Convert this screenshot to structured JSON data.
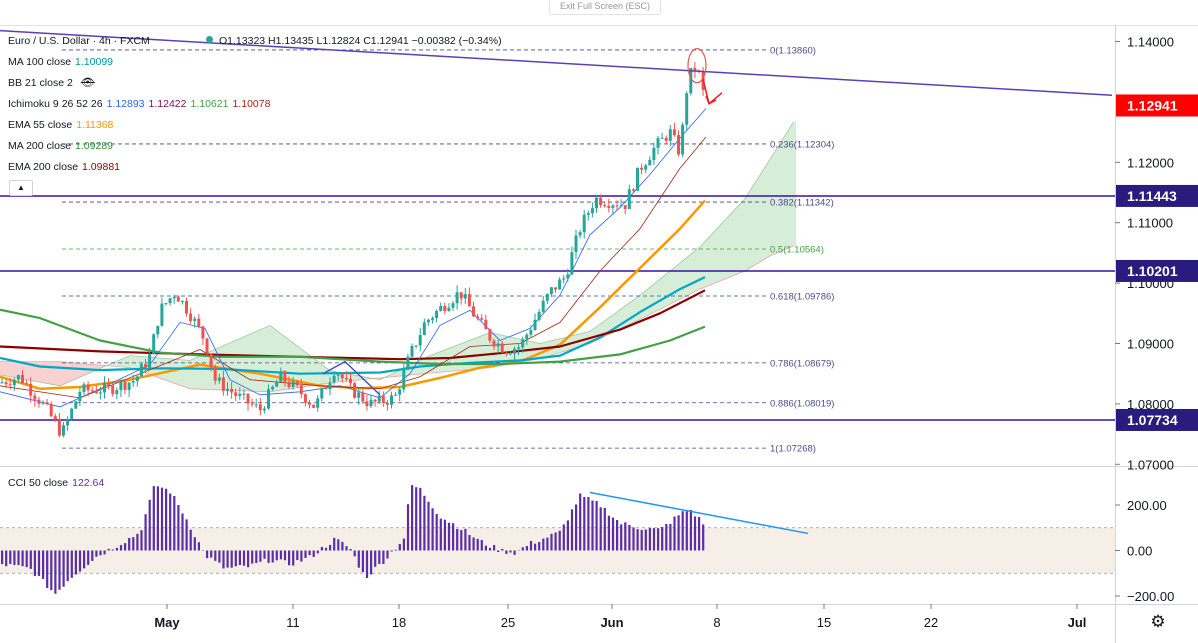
{
  "header": {
    "exit_fullscreen": "Exit Full Screen (ESC)",
    "symbol": "Euro / U.S. Dollar · 4h · FXCM",
    "ohlc": "O1.13323 H1.13435 L1.12824 C1.12941 −0.00382 (−0.34%)"
  },
  "legend": [
    {
      "name": "MA 100 close",
      "values": [
        "1.10099"
      ],
      "colors": [
        "#0097a7"
      ]
    },
    {
      "name": "BB 21 close 2",
      "values": [],
      "colors": [],
      "icon": "eye-slash-icon"
    },
    {
      "name": "Ichimoku 9 26 52 26",
      "values": [
        "1.12893",
        "1.12422",
        "1.10621",
        "1.10078"
      ],
      "colors": [
        "#2962ff",
        "#880e4f",
        "#43a047",
        "#a52714"
      ]
    },
    {
      "name": "EMA 55 close",
      "values": [
        "1.11368"
      ],
      "colors": [
        "#ff9800"
      ]
    },
    {
      "name": "MA 200 close",
      "values": [
        "1.09289"
      ],
      "colors": [
        "#388e3c"
      ]
    },
    {
      "name": "EMA 200 close",
      "values": [
        "1.09881"
      ],
      "colors": [
        "#8b0000"
      ]
    }
  ],
  "cci_legend": {
    "name": "CCI 50 close",
    "value": "122.64"
  },
  "colors": {
    "up": "#26a69a",
    "down": "#ef5350",
    "horizontal_line": "#3b0fa8",
    "trendline": "#5b3fb8",
    "fib_line": "#3b4a8c",
    "fib_0.5": "#43a047",
    "cci_bar": "#5b2ea6",
    "cci_trend": "#2196f3",
    "price_label": "#ff0000",
    "level_label": "#2a1b7e"
  },
  "chart_data": [
    {
      "type": "candlestick",
      "title": "",
      "symbol": "EURUSD",
      "timeframe": "4h",
      "x_tick_labels": [
        "May",
        "11",
        "18",
        "25",
        "Jun",
        "8",
        "15",
        "22",
        "Jul"
      ],
      "y_tick_labels": [
        "1.14000",
        "1.12000",
        "1.11000",
        "1.10000",
        "1.09000",
        "1.08000",
        "1.07000"
      ],
      "ylim": [
        1.0695,
        1.1408
      ],
      "grid": false,
      "last_price": "1.12941",
      "horizontal_levels": [
        "1.11443",
        "1.10201",
        "1.07734"
      ],
      "fibonacci": [
        {
          "ratio": "0",
          "price": "1.13860",
          "label": "0(1.13860)"
        },
        {
          "ratio": "0.236",
          "price": "1.12304",
          "label": "0.236(1.12304)"
        },
        {
          "ratio": "0.382",
          "price": "1.11342",
          "label": "0.382(1.11342)"
        },
        {
          "ratio": "0.5",
          "price": "1.10564",
          "label": "0.5(1.10564)"
        },
        {
          "ratio": "0.618",
          "price": "1.09786",
          "label": "0.618(1.09786)"
        },
        {
          "ratio": "0.786",
          "price": "1.08679",
          "label": "0.786(1.08679)"
        },
        {
          "ratio": "0.886",
          "price": "1.08019",
          "label": "0.886(1.08019)"
        },
        {
          "ratio": "1",
          "price": "1.07268",
          "label": "1(1.07268)"
        }
      ],
      "trendline": [
        [
          0,
          1.1418
        ],
        [
          1112,
          1.1311
        ]
      ],
      "series": [
        {
          "name": "EMA 55 close",
          "color": "#ff9800",
          "points": [
            [
              0,
              1.0845
            ],
            [
              40,
              1.0825
            ],
            [
              80,
              1.0828
            ],
            [
              130,
              1.084
            ],
            [
              200,
              1.0865
            ],
            [
              260,
              1.085
            ],
            [
              320,
              1.083
            ],
            [
              360,
              1.0826
            ],
            [
              400,
              1.0828
            ],
            [
              440,
              1.0843
            ],
            [
              480,
              1.086
            ],
            [
              520,
              1.087
            ],
            [
              560,
              1.0898
            ],
            [
              600,
              1.096
            ],
            [
              640,
              1.1025
            ],
            [
              680,
              1.109
            ],
            [
              705,
              1.1137
            ]
          ]
        },
        {
          "name": "MA 100 close",
          "color": "#00a7c4",
          "points": [
            [
              0,
              1.0876
            ],
            [
              40,
              1.0862
            ],
            [
              100,
              1.0856
            ],
            [
              160,
              1.0859
            ],
            [
              220,
              1.0858
            ],
            [
              300,
              1.085
            ],
            [
              380,
              1.0852
            ],
            [
              420,
              1.0862
            ],
            [
              470,
              1.0868
            ],
            [
              520,
              1.0872
            ],
            [
              560,
              1.088
            ],
            [
              600,
              1.091
            ],
            [
              640,
              1.0952
            ],
            [
              680,
              1.099
            ],
            [
              705,
              1.101
            ]
          ]
        },
        {
          "name": "EMA 200 close",
          "color": "#8b0000",
          "points": [
            [
              0,
              1.0895
            ],
            [
              100,
              1.0887
            ],
            [
              200,
              1.0882
            ],
            [
              300,
              1.0878
            ],
            [
              400,
              1.0874
            ],
            [
              450,
              1.0876
            ],
            [
              500,
              1.0884
            ],
            [
              560,
              1.0895
            ],
            [
              620,
              1.0923
            ],
            [
              660,
              1.095
            ],
            [
              705,
              1.0988
            ]
          ]
        },
        {
          "name": "MA 200 close",
          "color": "#43a047",
          "points": [
            [
              0,
              1.0956
            ],
            [
              40,
              1.0942
            ],
            [
              100,
              1.0905
            ],
            [
              160,
              1.0885
            ],
            [
              220,
              1.0878
            ],
            [
              300,
              1.0878
            ],
            [
              380,
              1.087
            ],
            [
              440,
              1.0866
            ],
            [
              500,
              1.0866
            ],
            [
              560,
              1.087
            ],
            [
              620,
              1.0882
            ],
            [
              670,
              1.0905
            ],
            [
              705,
              1.0928
            ]
          ]
        }
      ],
      "cloud": {
        "span_a": [
          [
            0,
            1.0848
          ],
          [
            60,
            1.083
          ],
          [
            130,
            1.088
          ],
          [
            190,
            1.0872
          ],
          [
            270,
            1.093
          ],
          [
            330,
            1.0855
          ],
          [
            380,
            1.084
          ],
          [
            430,
            1.088
          ],
          [
            490,
            1.0918
          ],
          [
            540,
            1.09
          ],
          [
            590,
            1.092
          ],
          [
            640,
            1.098
          ],
          [
            700,
            1.106
          ],
          [
            745,
            1.114
          ],
          [
            770,
            1.1205
          ],
          [
            794,
            1.1268
          ]
        ],
        "span_b": [
          [
            0,
            1.087
          ],
          [
            60,
            1.087
          ],
          [
            130,
            1.086
          ],
          [
            190,
            1.0825
          ],
          [
            270,
            1.082
          ],
          [
            330,
            1.0835
          ],
          [
            380,
            1.0843
          ],
          [
            430,
            1.0851
          ],
          [
            490,
            1.086
          ],
          [
            540,
            1.0875
          ],
          [
            590,
            1.09
          ],
          [
            640,
            1.094
          ],
          [
            700,
            1.099
          ],
          [
            745,
            1.102
          ],
          [
            770,
            1.1045
          ],
          [
            794,
            1.1062
          ]
        ],
        "color_up": "#a5d6a7",
        "color_down": "#ef9a9a"
      }
    },
    {
      "type": "bar",
      "title": "",
      "name": "CCI 50 close",
      "last_value": 122.64,
      "y_tick_labels": [
        "200.00",
        "0.00",
        "−200.00"
      ],
      "ylim": [
        -215,
        300
      ],
      "band": [
        -100,
        100
      ],
      "trendline": [
        [
          590,
          255
        ],
        [
          808,
          75
        ]
      ]
    }
  ]
}
